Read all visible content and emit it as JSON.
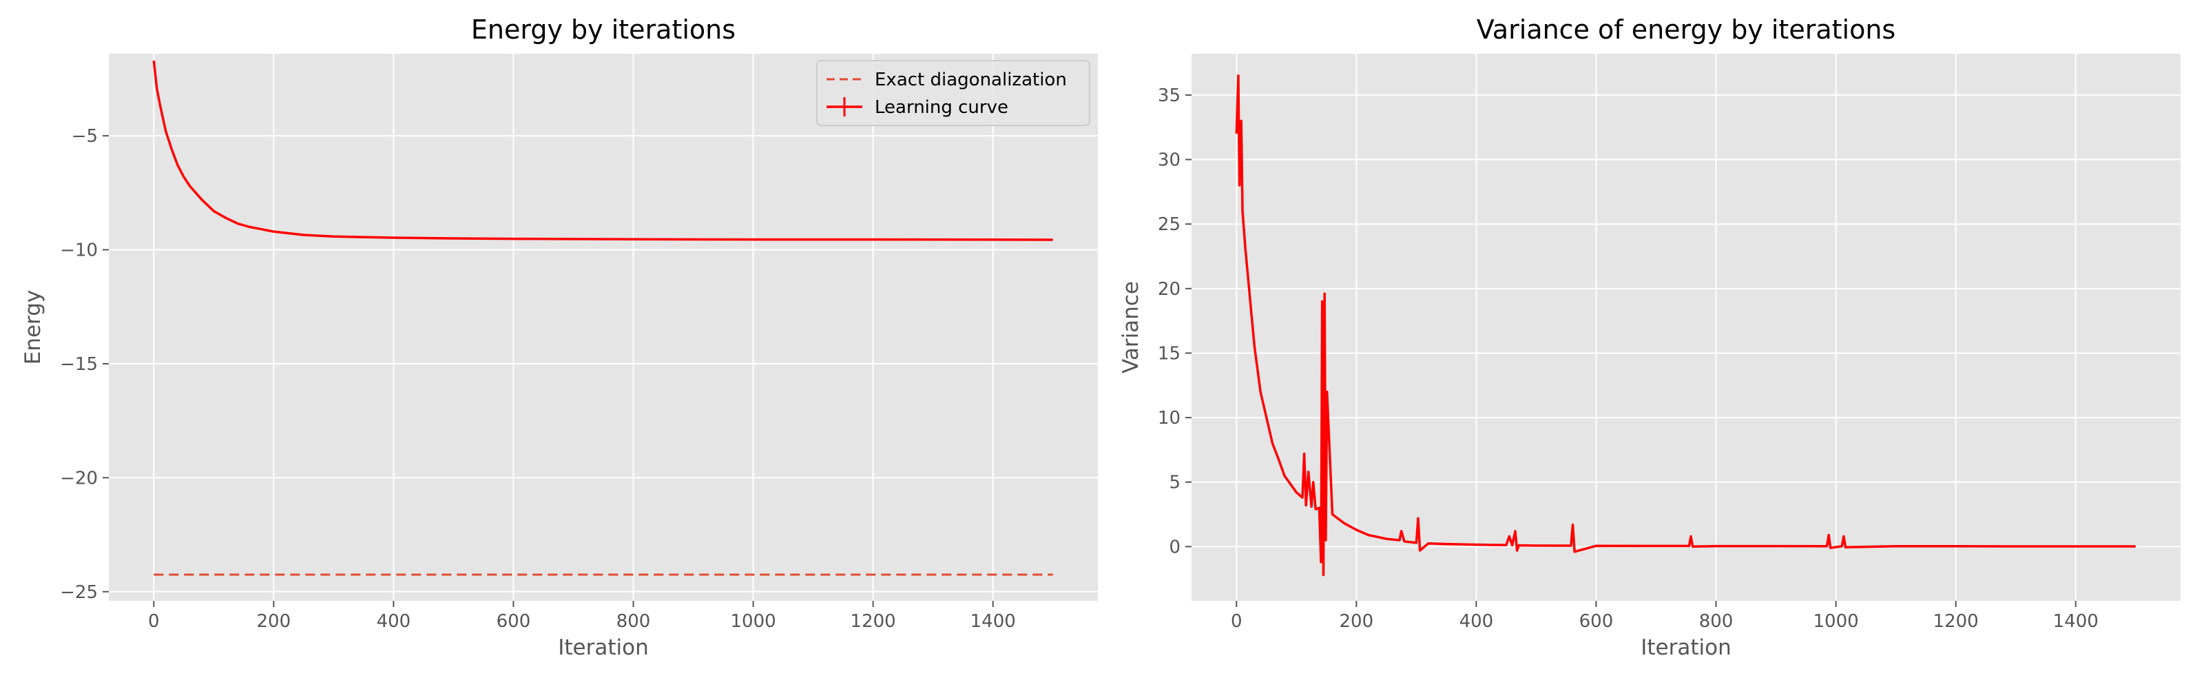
{
  "colors": {
    "background": "#ffffff",
    "plot_bg": "#e5e5e5",
    "grid": "#ffffff",
    "tick_text": "#555555",
    "title_text": "#000000",
    "series": "#ff0000",
    "exact": "#e24a33"
  },
  "chart_data": [
    {
      "type": "line",
      "title": "Energy by iterations",
      "xlabel": "Iteration",
      "ylabel": "Energy",
      "xlim": [
        -75,
        1575
      ],
      "ylim": [
        -25.4,
        -1.4
      ],
      "xticks": [
        0,
        200,
        400,
        600,
        800,
        1000,
        1200,
        1400
      ],
      "yticks": [
        -5,
        -10,
        -15,
        -20,
        -25
      ],
      "grid": true,
      "legend_position": "upper-right",
      "series": [
        {
          "name": "Exact diagonalization",
          "style": "dashed",
          "x": [
            0,
            1500
          ],
          "y": [
            -24.25,
            -24.25
          ]
        },
        {
          "name": "Learning curve",
          "style": "solid-errorbar",
          "x": [
            0,
            5,
            10,
            20,
            30,
            40,
            50,
            60,
            70,
            80,
            100,
            120,
            140,
            160,
            180,
            200,
            250,
            300,
            400,
            500,
            600,
            800,
            1000,
            1200,
            1500
          ],
          "y": [
            -1.7,
            -2.9,
            -3.6,
            -4.8,
            -5.6,
            -6.3,
            -6.8,
            -7.2,
            -7.5,
            -7.8,
            -8.3,
            -8.6,
            -8.85,
            -9.0,
            -9.1,
            -9.2,
            -9.35,
            -9.42,
            -9.47,
            -9.5,
            -9.52,
            -9.54,
            -9.55,
            -9.55,
            -9.56
          ]
        }
      ]
    },
    {
      "type": "line",
      "title": "Variance of energy by iterations",
      "xlabel": "Iteration",
      "ylabel": "Variance",
      "xlim": [
        -75,
        1575
      ],
      "ylim": [
        -4.2,
        38.2
      ],
      "xticks": [
        0,
        200,
        400,
        600,
        800,
        1000,
        1200,
        1400
      ],
      "yticks": [
        0,
        5,
        10,
        15,
        20,
        25,
        30,
        35
      ],
      "grid": true,
      "series": [
        {
          "name": "variance",
          "style": "solid",
          "x": [
            0,
            3,
            5,
            8,
            10,
            15,
            20,
            25,
            30,
            40,
            50,
            60,
            70,
            80,
            100,
            110,
            113,
            116,
            120,
            125,
            128,
            132,
            138,
            141,
            143,
            145,
            147,
            149,
            151,
            160,
            180,
            200,
            220,
            250,
            272,
            275,
            280,
            300,
            303,
            306,
            320,
            350,
            400,
            450,
            455,
            460,
            465,
            468,
            471,
            500,
            558,
            561,
            564,
            600,
            700,
            755,
            758,
            761,
            800,
            900,
            985,
            988,
            991,
            1010,
            1013,
            1016,
            1100,
            1200,
            1300,
            1400,
            1500
          ],
          "y": [
            32.0,
            36.5,
            28.0,
            33.0,
            26.0,
            23.0,
            20.5,
            18.0,
            15.5,
            12.0,
            10.0,
            8.0,
            6.8,
            5.5,
            4.2,
            3.8,
            7.2,
            3.2,
            5.8,
            3.1,
            5.0,
            2.9,
            3.0,
            -1.2,
            19.0,
            -2.2,
            19.6,
            0.5,
            12.0,
            2.5,
            1.8,
            1.3,
            0.9,
            0.6,
            0.5,
            1.2,
            0.4,
            0.3,
            2.2,
            -0.3,
            0.25,
            0.2,
            0.15,
            0.12,
            0.8,
            0.1,
            1.2,
            -0.3,
            0.1,
            0.08,
            0.07,
            1.7,
            -0.4,
            0.06,
            0.05,
            0.05,
            0.8,
            0.0,
            0.04,
            0.04,
            0.03,
            0.9,
            -0.1,
            0.03,
            0.8,
            -0.05,
            0.03,
            0.03,
            0.02,
            0.02,
            0.02
          ]
        }
      ]
    }
  ]
}
